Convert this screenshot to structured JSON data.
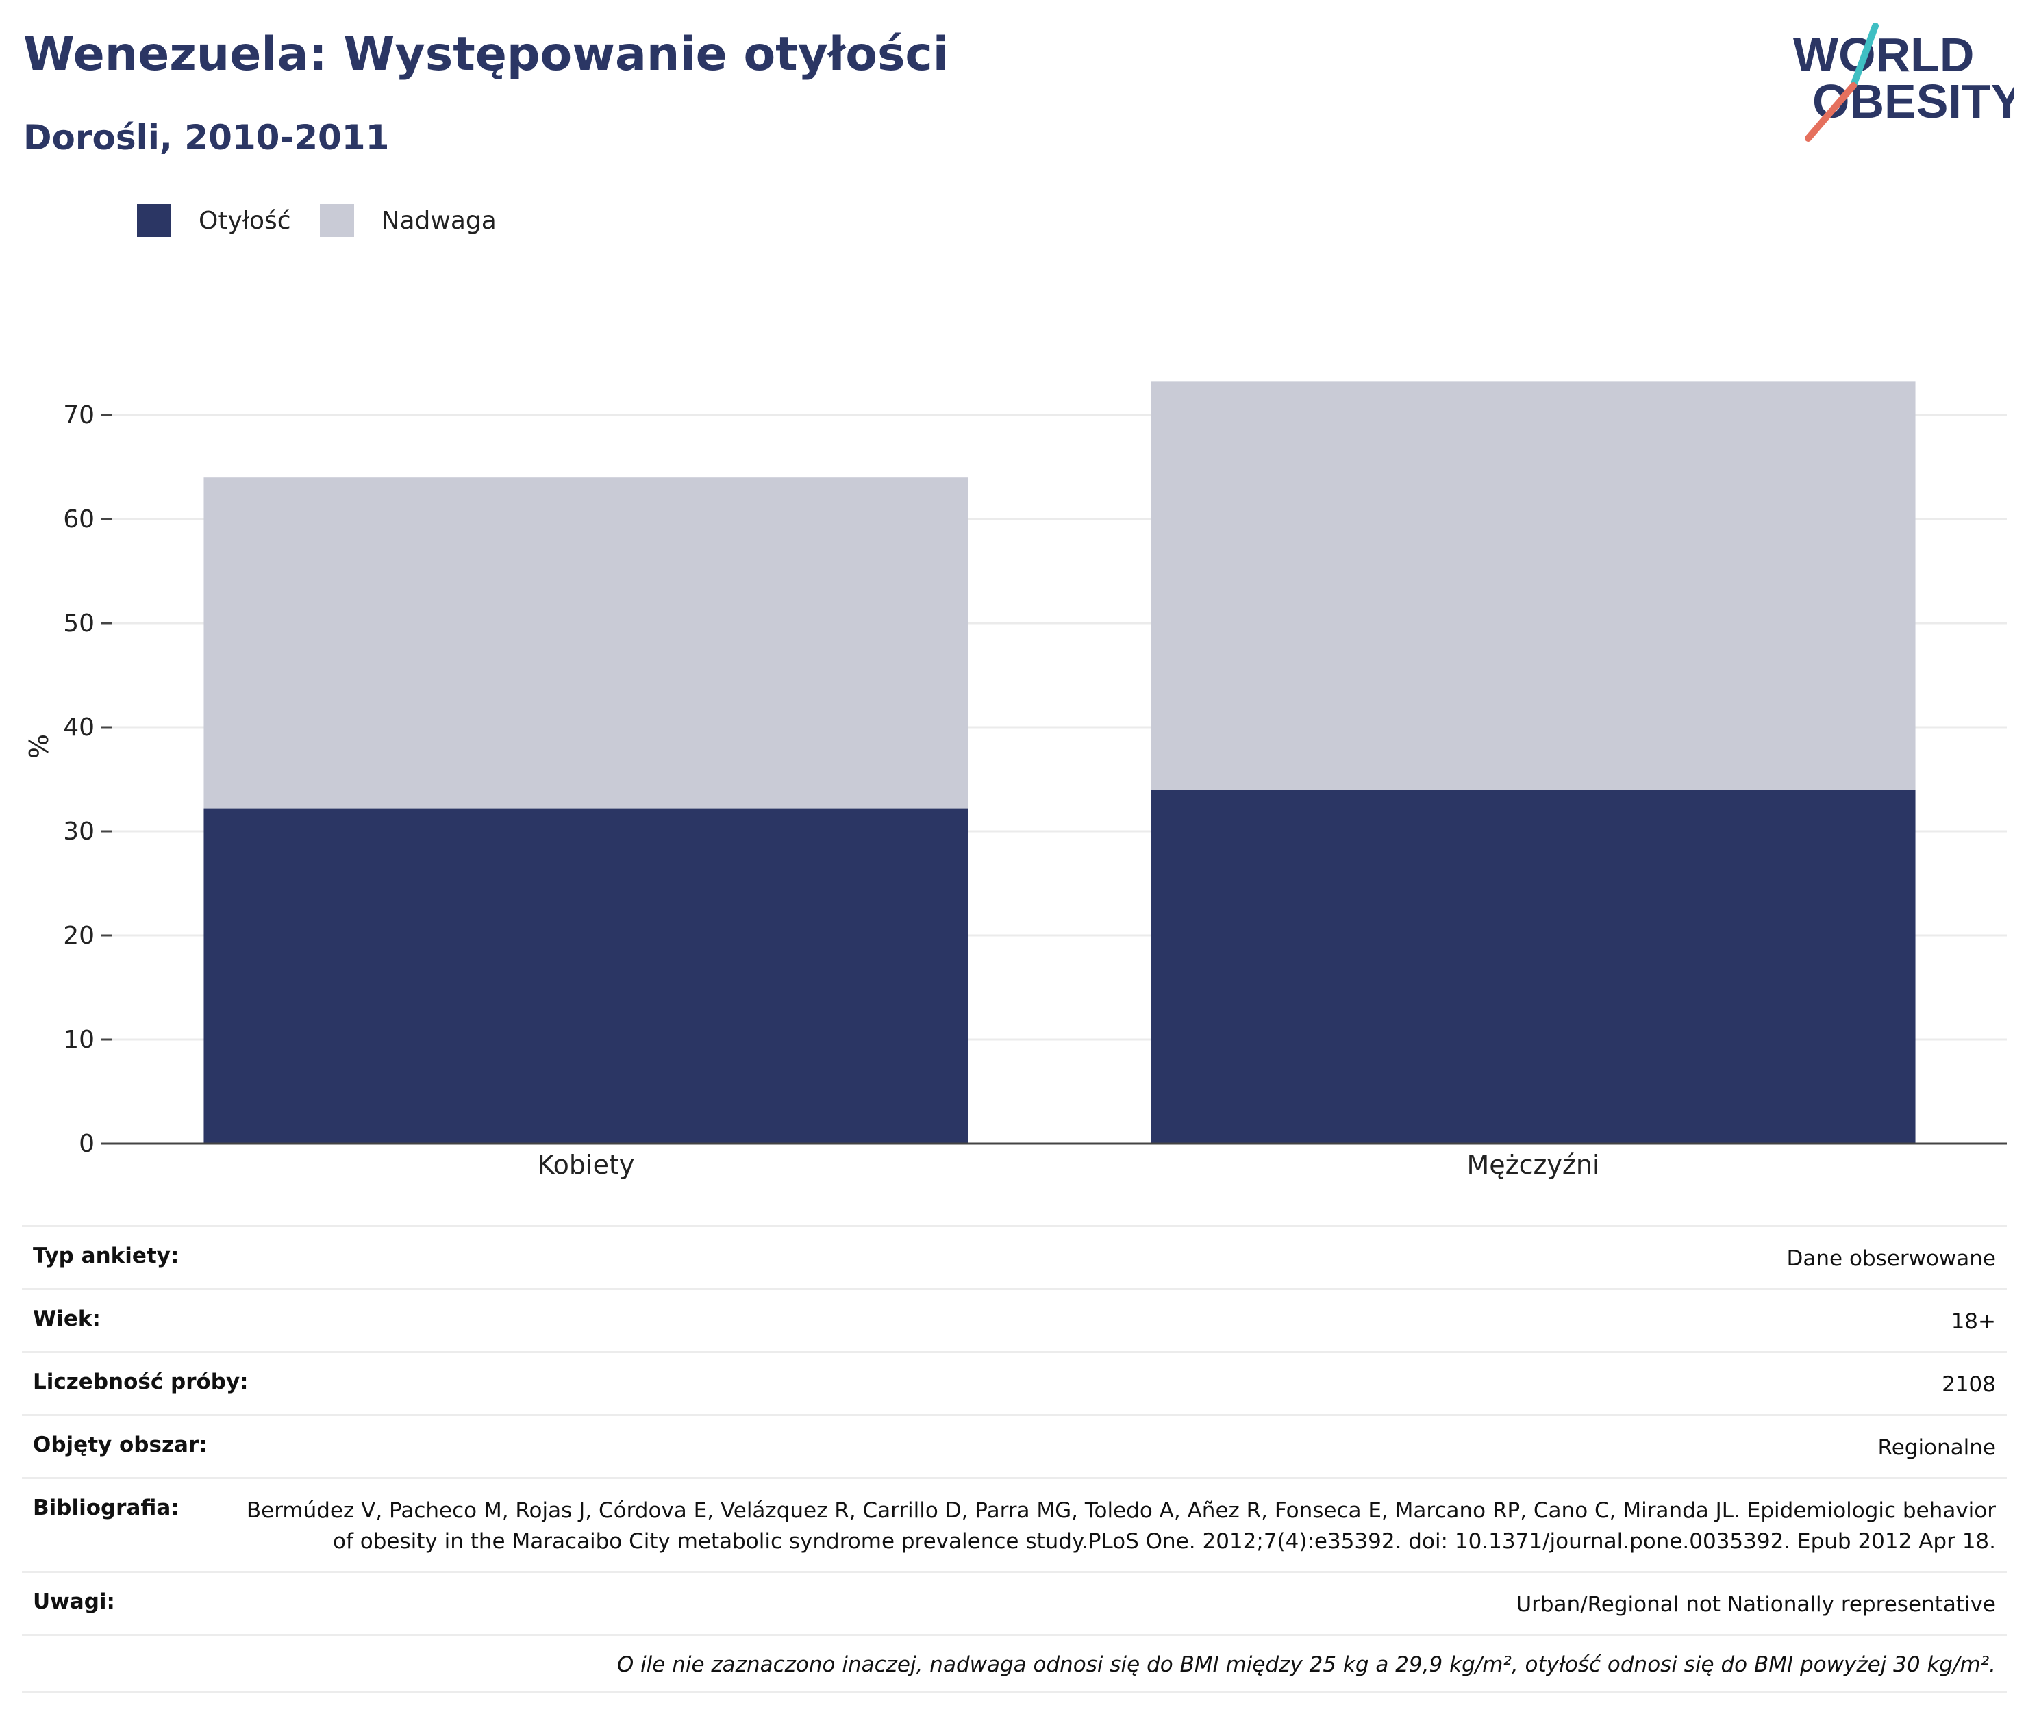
{
  "title": "Wenezuela: Występowanie otyłości",
  "subtitle": "Dorośli, 2010-2011",
  "logo": {
    "line1": "WORLD",
    "line2": "OBESITY"
  },
  "colors": {
    "obesity": "#2b3664",
    "overweight": "#c9cbd6",
    "accent_teal": "#3fbfc3",
    "accent_coral": "#e5705d"
  },
  "chart_data": {
    "type": "bar",
    "stacked": true,
    "categories": [
      "Kobiety",
      "Mężczyźni"
    ],
    "series": [
      {
        "name": "Otyłość",
        "values": [
          32.2,
          34.0
        ]
      },
      {
        "name": "Nadwaga",
        "values": [
          31.8,
          39.2
        ]
      }
    ],
    "ylabel": "%",
    "ylim": [
      0,
      75
    ],
    "yticks": [
      0,
      10,
      20,
      30,
      40,
      50,
      60,
      70
    ],
    "grid": true,
    "legend": "top-left"
  },
  "info": [
    {
      "key": "Typ ankiety:",
      "value": "Dane obserwowane"
    },
    {
      "key": "Wiek:",
      "value": "18+"
    },
    {
      "key": "Liczebność próby:",
      "value": "2108"
    },
    {
      "key": "Objęty obszar:",
      "value": "Regionalne"
    },
    {
      "key": "Bibliografia:",
      "value": "Bermúdez V, Pacheco M, Rojas J, Córdova E, Velázquez R, Carrillo D, Parra MG, Toledo A, Añez R, Fonseca E, Marcano RP, Cano C, Miranda JL. Epidemiologic behavior of obesity in the Maracaibo City metabolic syndrome prevalence study.PLoS One. 2012;7(4):e35392. doi: 10.1371/journal.pone.0035392. Epub 2012 Apr 18."
    },
    {
      "key": "Uwagi:",
      "value": "Urban/Regional not Nationally representative"
    }
  ],
  "note": "O ile nie zaznaczono inaczej, nadwaga odnosi się do BMI między 25 kg a 29,9 kg/m², otyłość odnosi się do BMI powyżej 30 kg/m²."
}
